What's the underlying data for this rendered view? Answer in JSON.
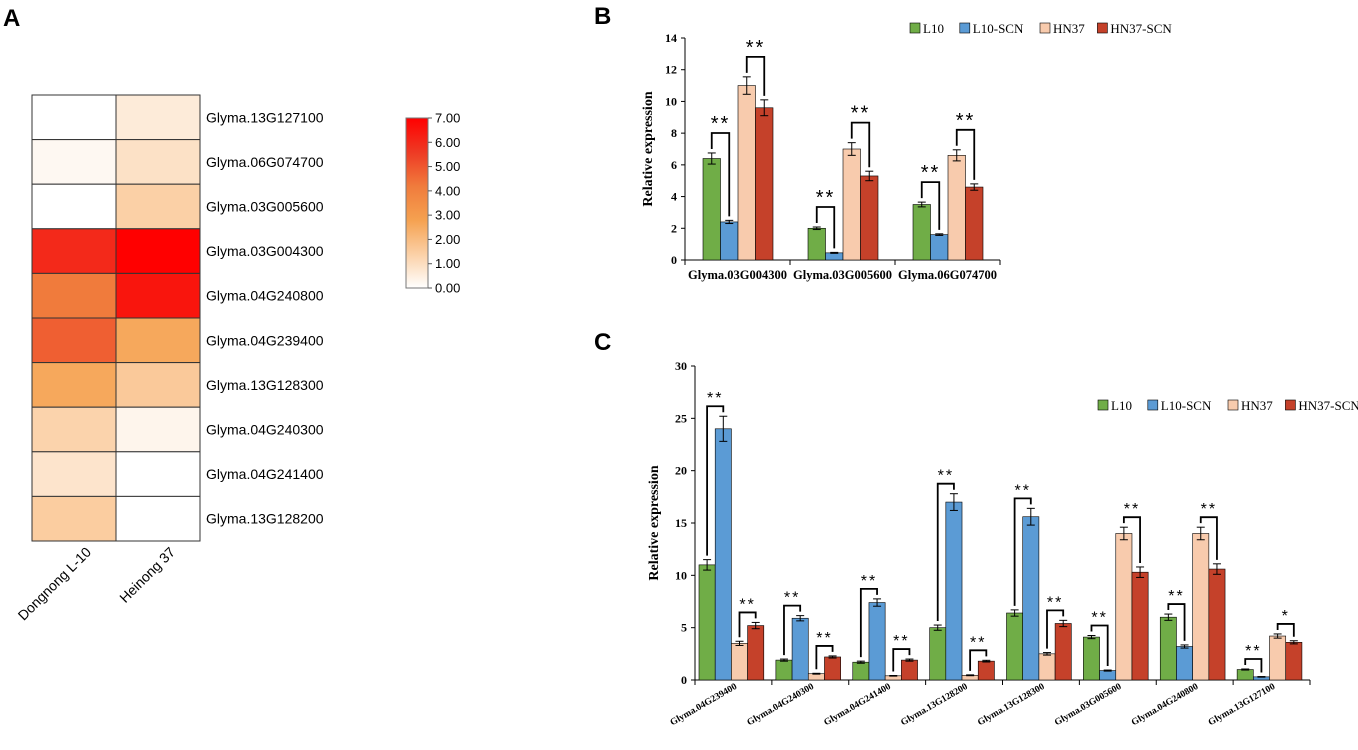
{
  "panels": {
    "a": "A",
    "b": "B",
    "c": "C"
  },
  "chart_data": [
    {
      "id": "A",
      "type": "heatmap",
      "title": "",
      "columns": [
        "Dongnong L-10",
        "Heinong 37"
      ],
      "rows": [
        "Glyma.13G127100",
        "Glyma.06G074700",
        "Glyma.03G005600",
        "Glyma.03G004300",
        "Glyma.04G240800",
        "Glyma.04G239400",
        "Glyma.13G128300",
        "Glyma.04G240300",
        "Glyma.04G241400",
        "Glyma.13G128200"
      ],
      "values": [
        [
          0.0,
          0.6
        ],
        [
          0.2,
          0.9
        ],
        [
          0.0,
          1.4
        ],
        [
          6.0,
          7.0
        ],
        [
          4.2,
          6.5
        ],
        [
          4.8,
          2.6
        ],
        [
          2.6,
          1.6
        ],
        [
          1.3,
          0.3
        ],
        [
          0.8,
          0.0
        ],
        [
          1.5,
          0.0
        ]
      ],
      "colorbar": {
        "min": 0,
        "max": 7,
        "ticks": [
          "0.00",
          "1.00",
          "2.00",
          "3.00",
          "4.00",
          "5.00",
          "6.00",
          "7.00"
        ],
        "colors": [
          "#ffffff",
          "#fbd0a6",
          "#f5a150",
          "#f07b3c",
          "#ee3a24",
          "#ff0000"
        ]
      }
    },
    {
      "id": "B",
      "type": "bar",
      "title": "",
      "xlabel": "",
      "ylabel": "Relative expression",
      "ylim": [
        0,
        14
      ],
      "yticks": [
        0,
        2,
        4,
        6,
        8,
        10,
        12,
        14
      ],
      "legend": "top",
      "categories": [
        "Glyma.03G004300",
        "Glyma.03G005600",
        "Glyma.06G074700"
      ],
      "series": [
        {
          "name": "L10",
          "color": "#70ad47",
          "values": [
            6.4,
            2.0,
            3.5
          ],
          "errors": [
            0.35,
            0.08,
            0.15
          ]
        },
        {
          "name": "L10-SCN",
          "color": "#5b9bd5",
          "values": [
            2.4,
            0.45,
            1.6
          ],
          "errors": [
            0.1,
            0.03,
            0.05
          ]
        },
        {
          "name": "HN37",
          "color": "#f8cbad",
          "values": [
            11.0,
            7.0,
            6.6
          ],
          "errors": [
            0.55,
            0.4,
            0.35
          ]
        },
        {
          "name": "HN37-SCN",
          "color": "#c5412a",
          "values": [
            9.6,
            5.3,
            4.6
          ],
          "errors": [
            0.5,
            0.3,
            0.2
          ]
        }
      ],
      "significance": [
        {
          "category": 0,
          "pair": [
            0,
            1
          ],
          "label": "**"
        },
        {
          "category": 0,
          "pair": [
            2,
            3
          ],
          "label": "**"
        },
        {
          "category": 1,
          "pair": [
            0,
            1
          ],
          "label": "**"
        },
        {
          "category": 1,
          "pair": [
            2,
            3
          ],
          "label": "**"
        },
        {
          "category": 2,
          "pair": [
            0,
            1
          ],
          "label": "**"
        },
        {
          "category": 2,
          "pair": [
            2,
            3
          ],
          "label": "**"
        }
      ]
    },
    {
      "id": "C",
      "type": "bar",
      "title": "",
      "xlabel": "",
      "ylabel": "Relative expression",
      "ylim": [
        0,
        30
      ],
      "yticks": [
        0,
        5,
        10,
        15,
        20,
        25,
        30
      ],
      "legend": "top-right",
      "categories": [
        "Glyma.04G239400",
        "Glyma.04G240300",
        "Glyma.04G241400",
        "Glyma.13G128200",
        "Glyma.13G128300",
        "Glyma.03G005600",
        "Glyma.04G240800",
        "Glyma.13G127100"
      ],
      "series": [
        {
          "name": "L10",
          "color": "#70ad47",
          "values": [
            11.0,
            1.9,
            1.7,
            5.0,
            6.4,
            4.1,
            6.0,
            1.0
          ],
          "errors": [
            0.5,
            0.1,
            0.1,
            0.25,
            0.3,
            0.15,
            0.3,
            0.05
          ]
        },
        {
          "name": "L10-SCN",
          "color": "#5b9bd5",
          "values": [
            24.0,
            5.9,
            7.4,
            17.0,
            15.6,
            0.9,
            3.2,
            0.3
          ],
          "errors": [
            1.2,
            0.25,
            0.35,
            0.8,
            0.8,
            0.05,
            0.15,
            0.03
          ]
        },
        {
          "name": "HN37",
          "color": "#f8cbad",
          "values": [
            3.5,
            0.6,
            0.4,
            0.45,
            2.5,
            14.0,
            14.0,
            4.2
          ],
          "errors": [
            0.2,
            0.04,
            0.03,
            0.04,
            0.12,
            0.6,
            0.6,
            0.2
          ]
        },
        {
          "name": "HN37-SCN",
          "color": "#c5412a",
          "values": [
            5.2,
            2.2,
            1.9,
            1.8,
            5.4,
            10.3,
            10.6,
            3.6
          ],
          "errors": [
            0.3,
            0.1,
            0.1,
            0.08,
            0.3,
            0.5,
            0.5,
            0.15
          ]
        }
      ],
      "significance": [
        {
          "category": 0,
          "pair": [
            0,
            1
          ],
          "label": "**"
        },
        {
          "category": 0,
          "pair": [
            2,
            3
          ],
          "label": "**"
        },
        {
          "category": 1,
          "pair": [
            0,
            1
          ],
          "label": "**"
        },
        {
          "category": 1,
          "pair": [
            2,
            3
          ],
          "label": "**"
        },
        {
          "category": 2,
          "pair": [
            0,
            1
          ],
          "label": "**"
        },
        {
          "category": 2,
          "pair": [
            2,
            3
          ],
          "label": "**"
        },
        {
          "category": 3,
          "pair": [
            0,
            1
          ],
          "label": "**"
        },
        {
          "category": 3,
          "pair": [
            2,
            3
          ],
          "label": "**"
        },
        {
          "category": 4,
          "pair": [
            0,
            1
          ],
          "label": "**"
        },
        {
          "category": 4,
          "pair": [
            2,
            3
          ],
          "label": "**"
        },
        {
          "category": 5,
          "pair": [
            0,
            1
          ],
          "label": "**"
        },
        {
          "category": 5,
          "pair": [
            2,
            3
          ],
          "label": "**"
        },
        {
          "category": 6,
          "pair": [
            0,
            1
          ],
          "label": "**"
        },
        {
          "category": 6,
          "pair": [
            2,
            3
          ],
          "label": "**"
        },
        {
          "category": 7,
          "pair": [
            0,
            1
          ],
          "label": "**"
        },
        {
          "category": 7,
          "pair": [
            2,
            3
          ],
          "label": "*"
        }
      ]
    }
  ]
}
